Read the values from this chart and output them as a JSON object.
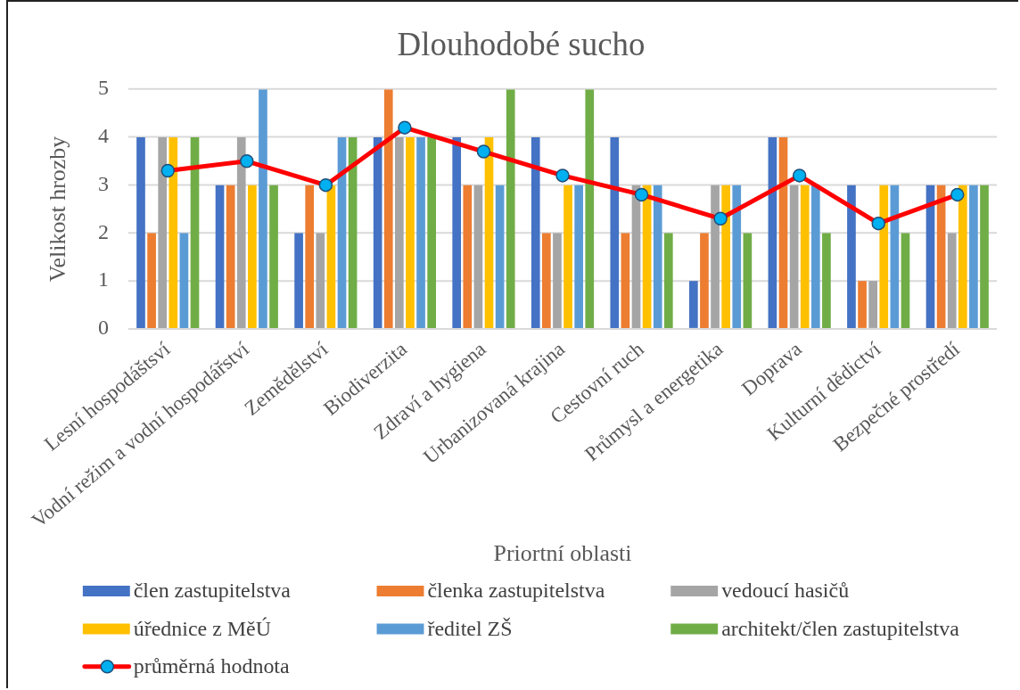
{
  "chart_data": {
    "type": "bar",
    "title": "Dlouhodobé sucho",
    "xlabel": "Priortní oblasti",
    "ylabel": "Velikost hrozby",
    "categories": [
      "Lesní hospodáštsví",
      "Vodní režim a vodní hospodářství",
      "Zemědělství",
      "Biodiverzita",
      "Zdraví a hygiena",
      "Urbanizovaná krajina",
      "Cestovní ruch",
      "Průmysl a energetika",
      "Doprava",
      "Kulturní dědictví",
      "Bezpečné prostředí"
    ],
    "series": [
      {
        "name": "člen zastupitelstva",
        "color": "#4472c4",
        "values": [
          4,
          3,
          2,
          4,
          4,
          4,
          4,
          1,
          4,
          3,
          3
        ]
      },
      {
        "name": "členka zastupitelstva",
        "color": "#ed7d31",
        "values": [
          2,
          3,
          3,
          5,
          3,
          2,
          2,
          2,
          4,
          1,
          3
        ]
      },
      {
        "name": "vedoucí hasičů",
        "color": "#a5a5a5",
        "values": [
          4,
          4,
          2,
          4,
          3,
          2,
          3,
          3,
          3,
          1,
          2
        ]
      },
      {
        "name": "úřednice z MěÚ",
        "color": "#ffc000",
        "values": [
          4,
          3,
          3,
          4,
          4,
          3,
          3,
          3,
          3,
          3,
          3
        ]
      },
      {
        "name": "ředitel ZŠ",
        "color": "#5b9bd5",
        "values": [
          2,
          5,
          4,
          4,
          3,
          3,
          3,
          3,
          3,
          3,
          3
        ]
      },
      {
        "name": "architekt/člen zastupitelstva",
        "color": "#70ad47",
        "values": [
          4,
          3,
          4,
          4,
          5,
          5,
          2,
          2,
          2,
          2,
          3
        ]
      },
      {
        "name": "průměrná hodnota",
        "type": "line",
        "color": "#ff0000",
        "values": [
          3.3,
          3.5,
          3,
          4.2,
          3.7,
          3.2,
          2.8,
          2.3,
          3.2,
          2.2,
          2.8
        ]
      }
    ],
    "ylim": [
      0,
      5
    ],
    "yticks": [
      0,
      1,
      2,
      3,
      4,
      5
    ],
    "grid": "y",
    "legend": "bottom",
    "marker": "circle"
  }
}
